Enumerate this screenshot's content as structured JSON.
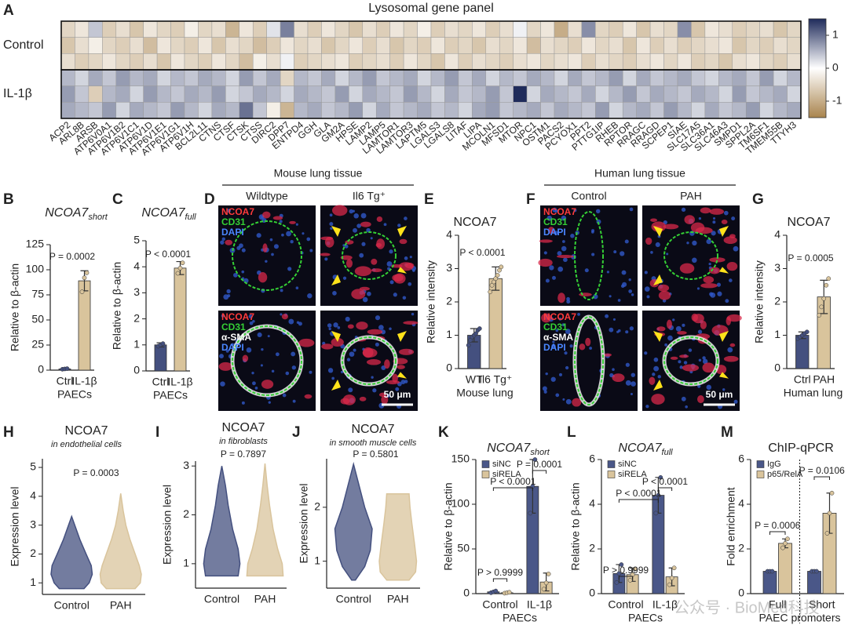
{
  "chart_data": [
    {
      "type": "heatmap",
      "panel": "A",
      "title": "Lysosomal gene panel",
      "row_groups": [
        "Control",
        "IL-1β"
      ],
      "categories": [
        "ACP2",
        "ARL8B",
        "ARSB",
        "ATP6V0A1",
        "ATP6V1B2",
        "ATP6V1C1",
        "ATP6V1D",
        "ATP6V1E1",
        "ATP6V1G1",
        "ATP6V1H",
        "BCL2L11",
        "CTNS",
        "CTSF",
        "CTSK",
        "CTSS",
        "DIRC2",
        "DPP7",
        "ENTPD4",
        "GGH",
        "GLA",
        "GM2A",
        "HPSE",
        "LAMP2",
        "LAMP5",
        "LAMTOR1",
        "LAMTOR3",
        "LAPTM5",
        "LGALS3",
        "LGALS8",
        "LITAF",
        "LIPA",
        "MCOLN1",
        "MFSD1",
        "MTOR",
        "NPC1",
        "OSTM1",
        "PACS2",
        "PCYOX1",
        "PPT2",
        "PTTG1IP",
        "RHEB",
        "RPTOR",
        "RRAGC",
        "RRAGD",
        "SCPEP1",
        "SIAE",
        "SLC17A5",
        "SLC36A1",
        "SLC46A3",
        "SMPD1",
        "SPPL2A",
        "TM6SF1",
        "TMEM55B",
        "TTYH3"
      ],
      "values": [
        [
          [
            -0.5,
            -0.3,
            0.4,
            -0.6,
            -0.4,
            -0.7,
            -0.3,
            -0.5,
            -0.6,
            -0.2,
            -0.5,
            -0.4,
            -0.9,
            -0.3,
            -0.6,
            0.2,
            0.9,
            -0.4,
            -0.6,
            -0.3,
            -0.5,
            -0.7,
            -0.4,
            -0.6,
            -0.3,
            -0.5,
            -0.2,
            -0.6,
            -0.4,
            -0.5,
            -0.3,
            -0.6,
            -0.4,
            0.1,
            -0.5,
            -0.3,
            -1.0,
            -0.4,
            0.8,
            -0.5,
            -0.6,
            -0.3,
            -0.7,
            -0.4,
            -0.5,
            0.8,
            -0.7,
            -0.3,
            -0.4,
            -0.6,
            -0.5,
            -0.4,
            -0.7,
            -0.5
          ],
          [
            -0.7,
            -0.4,
            -0.2,
            -0.5,
            -0.6,
            -0.4,
            -0.8,
            -0.3,
            -0.5,
            -0.6,
            -0.3,
            -0.7,
            -0.4,
            -0.5,
            -0.8,
            -0.6,
            -0.3,
            -0.5,
            -0.4,
            -0.7,
            -0.5,
            -0.3,
            -0.6,
            -0.4,
            -0.7,
            -0.5,
            -0.6,
            -0.3,
            -0.6,
            -0.5,
            -0.7,
            -0.4,
            -0.5,
            -0.3,
            -0.8,
            -0.4,
            -0.5,
            -0.6,
            -0.3,
            -0.5,
            -0.4,
            -0.7,
            -0.3,
            -0.6,
            -0.4,
            -0.6,
            -0.5,
            -0.4,
            -0.3,
            -0.7,
            -0.5,
            -0.6,
            -0.4,
            -0.5
          ],
          [
            -0.4,
            -0.6,
            -0.5,
            -0.3,
            -0.5,
            -0.6,
            -0.4,
            -0.7,
            -0.3,
            -0.5,
            -0.6,
            -0.3,
            -0.5,
            -0.8,
            -0.2,
            -0.4,
            0.1,
            -0.6,
            -0.5,
            -0.4,
            -0.3,
            -0.6,
            -0.5,
            -0.4,
            -0.6,
            -0.3,
            -0.5,
            -0.7,
            -0.3,
            -0.6,
            -0.4,
            -0.5,
            -0.6,
            -0.4,
            -0.3,
            -0.5,
            -0.4,
            -0.3,
            -0.6,
            -0.4,
            -0.5,
            -0.6,
            -0.4,
            -0.3,
            -0.5,
            -0.3,
            -0.6,
            -0.5,
            -0.7,
            -0.4,
            -0.3,
            -0.5,
            -0.6,
            -0.4
          ]
        ],
        [
          [
            0.5,
            0.3,
            0.6,
            0.4,
            0.7,
            0.5,
            0.6,
            0.3,
            0.5,
            0.4,
            0.6,
            0.5,
            0.3,
            0.7,
            0.4,
            0.6,
            -0.5,
            0.5,
            0.4,
            0.6,
            0.3,
            0.5,
            0.7,
            0.4,
            0.5,
            0.6,
            0.3,
            0.5,
            0.7,
            0.4,
            0.6,
            0.3,
            0.5,
            0.4,
            0.6,
            0.5,
            0.3,
            0.6,
            0.4,
            0.5,
            0.7,
            0.3,
            0.6,
            0.4,
            0.5,
            0.6,
            0.4,
            0.3,
            0.5,
            0.6,
            0.4,
            0.7,
            0.3,
            0.5
          ],
          [
            0.7,
            0.4,
            -0.6,
            0.5,
            0.6,
            0.3,
            0.7,
            0.5,
            0.4,
            0.6,
            0.5,
            0.7,
            0.3,
            0.4,
            0.6,
            0.5,
            0.3,
            0.6,
            0.5,
            0.4,
            0.7,
            0.3,
            0.6,
            0.5,
            0.4,
            0.7,
            0.5,
            0.3,
            0.6,
            0.4,
            0.5,
            0.7,
            0.4,
            1.5,
            0.3,
            0.6,
            0.5,
            0.4,
            0.6,
            0.3,
            0.5,
            0.7,
            0.4,
            0.6,
            0.5,
            0.4,
            0.6,
            0.5,
            0.3,
            0.7,
            0.4,
            0.5,
            0.6,
            0.3
          ],
          [
            0.6,
            0.5,
            0.4,
            0.7,
            0.3,
            0.6,
            0.5,
            0.4,
            0.7,
            0.5,
            0.3,
            0.6,
            0.5,
            1.0,
            0.4,
            -0.2,
            -0.9,
            0.5,
            0.6,
            0.4,
            0.5,
            0.7,
            0.3,
            0.6,
            0.4,
            0.5,
            0.6,
            0.4,
            0.5,
            0.3,
            0.6,
            0.7,
            0.4,
            0.5,
            0.6,
            0.4,
            0.6,
            0.5,
            0.4,
            0.7,
            0.3,
            0.5,
            0.6,
            0.4,
            0.7,
            0.5,
            0.3,
            0.6,
            0.4,
            0.5,
            0.7,
            0.3,
            0.5,
            0.6
          ]
        ]
      ],
      "colormap": [
        "#a9844d",
        "#ffffff",
        "#1f2b5b"
      ],
      "clim": [
        -1.5,
        1.5
      ],
      "cticks": [
        -1,
        0,
        1
      ]
    },
    {
      "type": "bar",
      "panel": "B",
      "title": "NCOA7",
      "title_sub": "short",
      "title_italic": true,
      "ylabel": "Relative to β-actin",
      "categories": [
        "Ctrl",
        "IL-1β"
      ],
      "group_label": "PAECs",
      "values": [
        1.2,
        89
      ],
      "errors": [
        0.4,
        10
      ],
      "points": [
        [
          0.9,
          1.2,
          1.5
        ],
        [
          78,
          92,
          97
        ]
      ],
      "colors": [
        "#44507f",
        "#d9c49c"
      ],
      "annotations": [
        "P = 0.0002"
      ],
      "ylim": [
        0,
        125
      ],
      "yticks": [
        0,
        25,
        50,
        75,
        100,
        125
      ]
    },
    {
      "type": "bar",
      "panel": "C",
      "title": "NCOA7",
      "title_sub": "full",
      "title_italic": true,
      "ylabel": "Relative to β-actin",
      "categories": [
        "Ctrl",
        "IL-1β"
      ],
      "group_label": "PAECs",
      "values": [
        1.0,
        3.95
      ],
      "errors": [
        0.08,
        0.25
      ],
      "points": [
        [
          0.95,
          1.0,
          1.05
        ],
        [
          3.75,
          3.95,
          4.15
        ]
      ],
      "colors": [
        "#44507f",
        "#d9c49c"
      ],
      "annotations": [
        "P < 0.0001"
      ],
      "ylim": [
        0,
        5
      ],
      "yticks": [
        0,
        1,
        2,
        3,
        4,
        5
      ]
    },
    {
      "type": "bar",
      "panel": "E",
      "title": "NCOA7",
      "title_italic": false,
      "ylabel": "Relative intensity",
      "categories": [
        "WT",
        "Il6 Tg⁺"
      ],
      "group_label": "Mouse lung",
      "values": [
        1.0,
        2.7
      ],
      "errors": [
        0.2,
        0.35
      ],
      "points": [
        [
          0.7,
          0.85,
          0.95,
          1.0,
          1.05,
          1.15,
          1.2
        ],
        [
          2.3,
          2.5,
          2.6,
          2.7,
          2.8,
          2.95,
          3.05
        ]
      ],
      "colors": [
        "#44507f",
        "#d9c49c"
      ],
      "annotations": [
        "P < 0.0001"
      ],
      "ylim": [
        0,
        4
      ],
      "yticks": [
        0,
        1,
        2,
        3,
        4
      ]
    },
    {
      "type": "bar",
      "panel": "G",
      "title": "NCOA7",
      "title_italic": false,
      "ylabel": "Relative intensity",
      "categories": [
        "Ctrl",
        "PAH"
      ],
      "group_label": "Human lung",
      "values": [
        1.0,
        2.15
      ],
      "errors": [
        0.1,
        0.5
      ],
      "points": [
        [
          0.9,
          0.95,
          1.0,
          1.05,
          1.1
        ],
        [
          1.6,
          1.85,
          2.1,
          2.5,
          2.7
        ]
      ],
      "colors": [
        "#44507f",
        "#d9c49c"
      ],
      "annotations": [
        "P = 0.0005"
      ],
      "ylim": [
        0,
        4
      ],
      "yticks": [
        0,
        1,
        2,
        3,
        4
      ]
    },
    {
      "type": "violin",
      "panel": "H",
      "title": "NCOA7",
      "subtitle": "in endothelial cells",
      "ylabel": "Expression level",
      "categories": [
        "Control",
        "PAH"
      ],
      "colors": [
        "#44507f",
        "#d9c49c"
      ],
      "levels": [
        [
          0.8,
          1,
          1.3,
          1.6,
          2,
          2.5,
          3,
          3.3
        ],
        [
          0.8,
          1,
          1.3,
          1.6,
          2,
          2.5,
          3,
          3.5,
          4.1
        ]
      ],
      "widths": [
        [
          0.6,
          0.85,
          1.0,
          0.95,
          0.7,
          0.4,
          0.15,
          0
        ],
        [
          0.7,
          0.95,
          1.0,
          0.9,
          0.7,
          0.45,
          0.25,
          0.12,
          0
        ]
      ],
      "annotations": [
        "P = 0.0003"
      ],
      "ylim": [
        0.6,
        5.3
      ],
      "yticks": [
        1,
        2,
        3,
        4,
        5
      ]
    },
    {
      "type": "violin",
      "panel": "I",
      "title": "NCOA7",
      "subtitle": "in fibroblasts",
      "ylabel": "Expression level",
      "categories": [
        "Control",
        "PAH"
      ],
      "colors": [
        "#44507f",
        "#d9c49c"
      ],
      "levels": [
        [
          0.75,
          1,
          1.3,
          1.7,
          2.2,
          2.6,
          3.0
        ],
        [
          0.75,
          1,
          1.3,
          1.7,
          2.2,
          2.6,
          3.05
        ]
      ],
      "widths": [
        [
          0.9,
          1.0,
          0.9,
          0.6,
          0.35,
          0.2,
          0
        ],
        [
          1.0,
          0.95,
          0.7,
          0.45,
          0.25,
          0.12,
          0
        ]
      ],
      "annotations": [
        "P = 0.7897"
      ],
      "ylim": [
        0.5,
        3.1
      ],
      "yticks": [
        1,
        2,
        3
      ]
    },
    {
      "type": "violin",
      "panel": "J",
      "title": "NCOA7",
      "subtitle": "in smooth muscle cells",
      "ylabel": "Expression level",
      "categories": [
        "Control",
        "PAH"
      ],
      "colors": [
        "#44507f",
        "#d9c49c"
      ],
      "levels": [
        [
          0.65,
          0.9,
          1.2,
          1.6,
          2.0,
          2.4,
          2.8
        ],
        [
          0.65,
          0.8,
          1.0,
          1.3,
          1.7,
          2.0,
          2.25
        ]
      ],
      "widths": [
        [
          0.1,
          0.6,
          0.9,
          1.0,
          0.6,
          0.3,
          0
        ],
        [
          0.6,
          0.95,
          1.0,
          0.9,
          0.75,
          0.65,
          0.6
        ]
      ],
      "annotations": [
        "P = 0.5801"
      ],
      "ylim": [
        0.5,
        2.9
      ],
      "yticks": [
        1,
        2
      ]
    },
    {
      "type": "grouped_bar",
      "panel": "K",
      "title": "NCOA7",
      "title_sub": "short",
      "title_italic": true,
      "ylabel": "Relative to β-actin",
      "categories": [
        "Control",
        "IL-1β"
      ],
      "group_label": "PAECs",
      "series": [
        {
          "name": "siNC",
          "color": "#4a5788",
          "values": [
            2,
            120
          ],
          "errors": [
            1,
            30
          ],
          "points": [
            [
              1,
              2,
              3
            ],
            [
              90,
              120,
              150
            ]
          ]
        },
        {
          "name": "siRELA",
          "color": "#d9c49c",
          "values": [
            1,
            13
          ],
          "errors": [
            0.5,
            10
          ],
          "points": [
            [
              0.5,
              1,
              1.5
            ],
            [
              5,
              12,
              22
            ]
          ]
        }
      ],
      "annotations": [
        "P > 0.9999",
        "P < 0.0001",
        "P = 0.0001"
      ],
      "ylim": [
        0,
        150
      ],
      "yticks": [
        0,
        50,
        100,
        150
      ]
    },
    {
      "type": "grouped_bar",
      "panel": "L",
      "title": "NCOA7",
      "title_sub": "full",
      "title_italic": true,
      "ylabel": "Relative to β-actin",
      "categories": [
        "Control",
        "IL-1β"
      ],
      "group_label": "PAECs",
      "series": [
        {
          "name": "siNC",
          "color": "#4a5788",
          "values": [
            0.9,
            4.4
          ],
          "errors": [
            0.4,
            0.8
          ],
          "points": [
            [
              0.5,
              0.9,
              1.3
            ],
            [
              3.6,
              4.4,
              5.2
            ]
          ]
        },
        {
          "name": "siRELA",
          "color": "#d9c49c",
          "values": [
            0.85,
            0.75
          ],
          "errors": [
            0.3,
            0.4
          ],
          "points": [
            [
              0.6,
              0.85,
              1.1
            ],
            [
              0.4,
              0.7,
              1.15
            ]
          ]
        }
      ],
      "annotations": [
        "P > 0.9999",
        "P < 0.0001",
        "P < 0.0001"
      ],
      "ylim": [
        0,
        6
      ],
      "yticks": [
        0,
        2,
        4,
        6
      ]
    },
    {
      "type": "grouped_bar",
      "panel": "M",
      "title": "ChIP-qPCR",
      "title_italic": false,
      "ylabel": "Fold enrichment",
      "categories": [
        "Full",
        "Short"
      ],
      "group_label": "PAEC promoters",
      "series": [
        {
          "name": "IgG",
          "color": "#4a5788",
          "values": [
            1,
            1
          ],
          "errors": [
            0.02,
            0.02
          ],
          "points": [
            [
              1,
              1,
              1
            ],
            [
              1,
              1,
              1
            ]
          ]
        },
        {
          "name": "p65/RelA",
          "color": "#d9c49c",
          "values": [
            2.25,
            3.6
          ],
          "errors": [
            0.2,
            0.9
          ],
          "points": [
            [
              2.05,
              2.25,
              2.45
            ],
            [
              2.7,
              3.6,
              4.5
            ]
          ]
        }
      ],
      "annotations": [
        "P = 0.0006",
        "P = 0.0106"
      ],
      "ylim": [
        0,
        6
      ],
      "yticks": [
        0,
        2,
        4,
        6
      ]
    }
  ],
  "image_panels": [
    {
      "panel": "D",
      "header": "Mouse lung tissue",
      "columns": [
        "Wildtype",
        "Il6 Tg⁺"
      ],
      "rows": [
        [
          {
            "name": "NCOA7",
            "color": "#ff3b3b"
          },
          {
            "name": "CD31",
            "color": "#35d035"
          },
          {
            "name": "DAPI",
            "color": "#4a86ff"
          }
        ],
        [
          {
            "name": "NCOA7",
            "color": "#ff3b3b"
          },
          {
            "name": "CD31",
            "color": "#35d035"
          },
          {
            "name": "α-SMA",
            "color": "#ffffff"
          },
          {
            "name": "DAPI",
            "color": "#4a86ff"
          }
        ]
      ],
      "scale_bar": "50 μm"
    },
    {
      "panel": "F",
      "header": "Human lung tissue",
      "columns": [
        "Control",
        "PAH"
      ],
      "rows": [
        [
          {
            "name": "NCOA7",
            "color": "#ff3b3b"
          },
          {
            "name": "CD31",
            "color": "#35d035"
          },
          {
            "name": "DAPI",
            "color": "#4a86ff"
          }
        ],
        [
          {
            "name": "NCOA7",
            "color": "#ff3b3b"
          },
          {
            "name": "CD31",
            "color": "#35d035"
          },
          {
            "name": "α-SMA",
            "color": "#ffffff"
          },
          {
            "name": "DAPI",
            "color": "#4a86ff"
          }
        ]
      ],
      "scale_bar": "50 μm"
    }
  ],
  "watermark": "公众号 · BioMed科技"
}
